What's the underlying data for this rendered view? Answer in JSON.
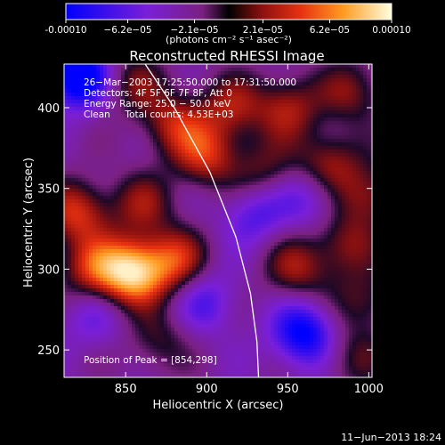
{
  "chart_data": {
    "type": "heatmap",
    "title": "Reconstructed RHESSI Image",
    "xlabel": "Heliocentric X (arcsec)",
    "ylabel": "Heliocentric Y (arcsec)",
    "xlim": [
      812,
      1002
    ],
    "ylim": [
      233,
      427
    ],
    "x_ticks": [
      850,
      900,
      950,
      1000
    ],
    "y_ticks": [
      250,
      300,
      350,
      400
    ],
    "colorbar": {
      "range": [
        -0.0001,
        0.0001
      ],
      "tick_values": [
        -0.0001,
        -6.2e-05,
        -2.1e-05,
        2.1e-05,
        6.2e-05,
        0.0001
      ],
      "tick_labels": [
        "-0.00010",
        "−6.2e−05",
        "−2.1e−05",
        "2.1e−05",
        "6.2e−05",
        "0.00010"
      ],
      "units": "(photons cm⁻² s⁻¹ asec⁻²)"
    },
    "annotations": [
      "26−Mar−2003 17:25:50.000 to 17:31:50.000",
      "Detectors: 4F 5F 6F 7F 8F, Att 0",
      "Energy Range: 25.0 − 50.0 keV",
      "Clean     Total counts: 4.53E+03"
    ],
    "peak_label": "Position of Peak = [854,298]",
    "peak": [
      854,
      298
    ],
    "limb": [
      [
        862,
        427
      ],
      [
        880,
        400
      ],
      [
        902,
        360
      ],
      [
        918,
        320
      ],
      [
        927,
        285
      ],
      [
        931,
        255
      ],
      [
        932,
        233
      ]
    ],
    "blobs": [
      {
        "x": 820,
        "y": 420,
        "v": -0.9
      },
      {
        "x": 855,
        "y": 415,
        "v": 0.35
      },
      {
        "x": 880,
        "y": 390,
        "v": 0.5
      },
      {
        "x": 915,
        "y": 400,
        "v": 0.45
      },
      {
        "x": 950,
        "y": 400,
        "v": 0.5
      },
      {
        "x": 990,
        "y": 410,
        "v": 0.4
      },
      {
        "x": 900,
        "y": 370,
        "v": 0.55
      },
      {
        "x": 935,
        "y": 360,
        "v": 0.35
      },
      {
        "x": 975,
        "y": 365,
        "v": 0.5
      },
      {
        "x": 1000,
        "y": 345,
        "v": 0.45
      },
      {
        "x": 820,
        "y": 335,
        "v": 0.6
      },
      {
        "x": 860,
        "y": 340,
        "v": 0.4
      },
      {
        "x": 854,
        "y": 298,
        "v": 1.0
      },
      {
        "x": 880,
        "y": 305,
        "v": 0.6
      },
      {
        "x": 830,
        "y": 300,
        "v": 0.55
      },
      {
        "x": 955,
        "y": 300,
        "v": 0.45
      },
      {
        "x": 985,
        "y": 315,
        "v": 0.4
      },
      {
        "x": 960,
        "y": 260,
        "v": -0.7
      },
      {
        "x": 998,
        "y": 280,
        "v": 0.35
      },
      {
        "x": 870,
        "y": 255,
        "v": 0.3
      },
      {
        "x": 930,
        "y": 335,
        "v": -0.4
      },
      {
        "x": 900,
        "y": 280,
        "v": -0.35
      },
      {
        "x": 830,
        "y": 270,
        "v": -0.25
      },
      {
        "x": 965,
        "y": 345,
        "v": -0.35
      },
      {
        "x": 990,
        "y": 245,
        "v": 0.3
      }
    ]
  },
  "footer_date": "11−Jun−2013 18:24"
}
